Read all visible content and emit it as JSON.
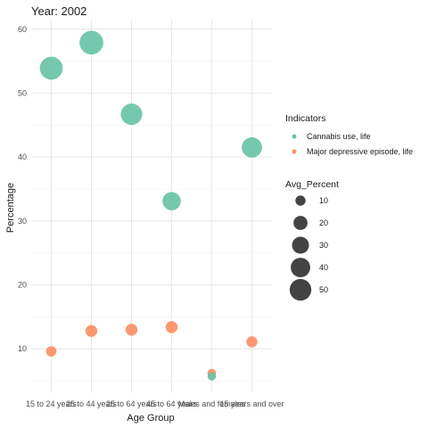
{
  "chart_data": {
    "type": "scatter",
    "title": "Year: 2002",
    "xlabel": "Age Group",
    "ylabel": "Percentage",
    "categories": [
      "15 to 24 years",
      "25 to 44 years",
      "25 to 64 years",
      "45 to 64 years",
      "Males and females",
      "15 years and over"
    ],
    "category_tick_labels": [
      "15 to 24 years",
      "25 to 44 years",
      "25 to 64 years",
      "45 to 64 years",
      "Males and females",
      "15 years and over"
    ],
    "ylim": [
      3.2,
      61.5
    ],
    "yticks": [
      10,
      20,
      30,
      40,
      50,
      60
    ],
    "grid": true,
    "legend_placement": "right",
    "series": [
      {
        "name": "Cannabis use, life",
        "color": "#66c2a5",
        "values": [
          53.9,
          57.9,
          46.7,
          33.1,
          5.7,
          41.5
        ]
      },
      {
        "name": "Major depressive episode, life",
        "color": "#fc8d62",
        "values": [
          9.6,
          12.8,
          13.0,
          13.4,
          6.2,
          11.1
        ]
      }
    ],
    "color_legend": {
      "title": "Indicators",
      "items": [
        "Cannabis use, life",
        "Major depressive episode, life"
      ]
    },
    "size_legend": {
      "title": "Avg_Percent",
      "values": [
        10,
        20,
        30,
        40,
        50
      ],
      "labels": [
        "10",
        "20",
        "30",
        "40",
        "50"
      ]
    }
  }
}
